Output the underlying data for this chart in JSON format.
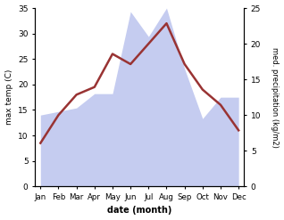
{
  "months": [
    "Jan",
    "Feb",
    "Mar",
    "Apr",
    "May",
    "Jun",
    "Jul",
    "Aug",
    "Sep",
    "Oct",
    "Nov",
    "Dec"
  ],
  "temp_max": [
    8.5,
    14.0,
    18.0,
    19.5,
    26.0,
    24.0,
    28.0,
    32.0,
    24.0,
    19.0,
    16.0,
    11.0
  ],
  "precipitation": [
    10.0,
    10.5,
    11.0,
    13.0,
    13.0,
    24.5,
    21.0,
    25.0,
    16.5,
    9.5,
    12.5,
    12.5
  ],
  "temp_color": "#993333",
  "precip_fill_color": "#c5ccf0",
  "temp_ylim": [
    0,
    35
  ],
  "precip_ylim": [
    0,
    25
  ],
  "temp_yticks": [
    0,
    5,
    10,
    15,
    20,
    25,
    30,
    35
  ],
  "precip_yticks": [
    0,
    5,
    10,
    15,
    20,
    25
  ],
  "xlabel": "date (month)",
  "ylabel_left": "max temp (C)",
  "ylabel_right": "med. precipitation (kg/m2)",
  "bg_color": "#ffffff"
}
